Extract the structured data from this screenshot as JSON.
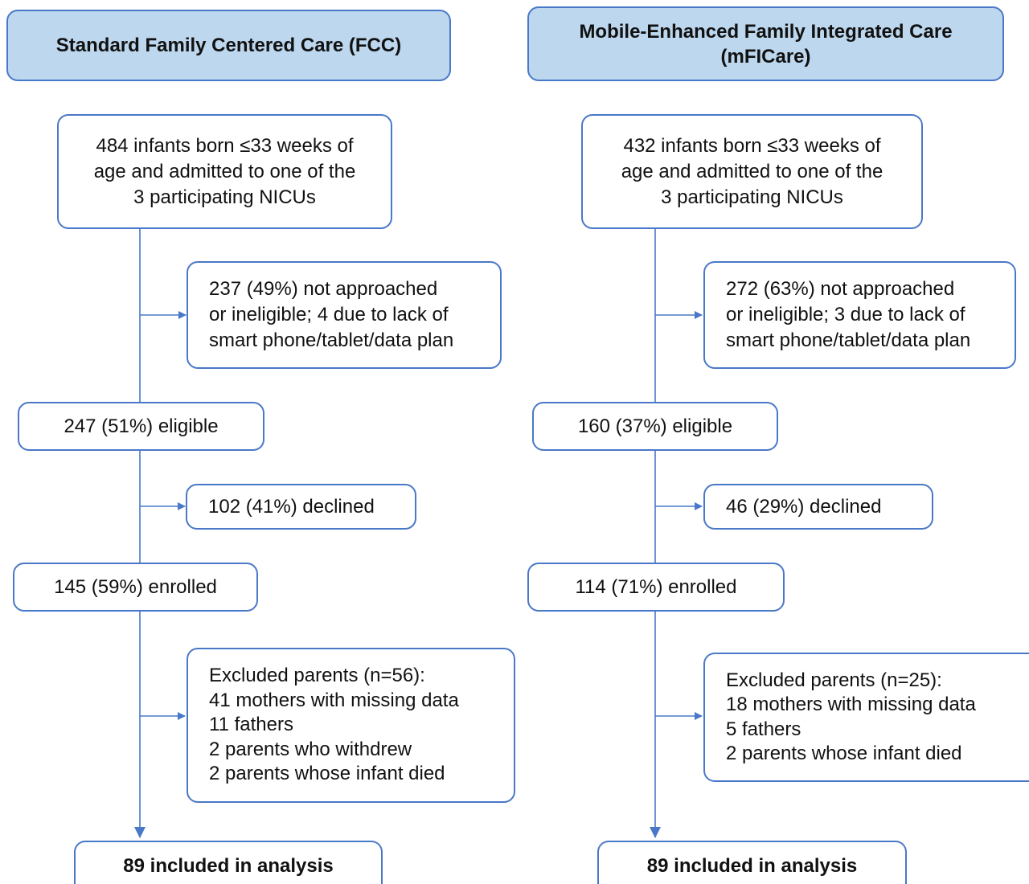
{
  "columns": [
    {
      "header": "Standard Family Centered Care (FCC)",
      "population": [
        "484 infants born ≤33 weeks of",
        "age and admitted to one of the",
        "3 participating NICUs"
      ],
      "not_approached": [
        "237 (49%) not approached",
        "or ineligible; 4 due to lack of",
        "smart phone/tablet/data plan"
      ],
      "eligible": "247 (51%) eligible",
      "declined": "102 (41%) declined",
      "enrolled": "145 (59%) enrolled",
      "excluded": [
        "Excluded parents (n=56):",
        "41 mothers with missing data",
        "11 fathers",
        "2 parents who withdrew",
        "2 parents whose infant died"
      ],
      "included": "89 included in analysis"
    },
    {
      "header": "Mobile-Enhanced Family Integrated Care (mFICare)",
      "population": [
        "432 infants born ≤33 weeks of",
        "age and admitted to one of the",
        "3 participating NICUs"
      ],
      "not_approached": [
        "272 (63%) not approached",
        "or ineligible; 3 due to lack of",
        "smart phone/tablet/data plan"
      ],
      "eligible": "160 (37%) eligible",
      "declined": "46 (29%) declined",
      "enrolled": "114 (71%) enrolled",
      "excluded": [
        "Excluded parents (n=25):",
        "18 mothers with missing data",
        "5 fathers",
        "2 parents whose infant died"
      ],
      "included": "89 included in analysis"
    }
  ]
}
